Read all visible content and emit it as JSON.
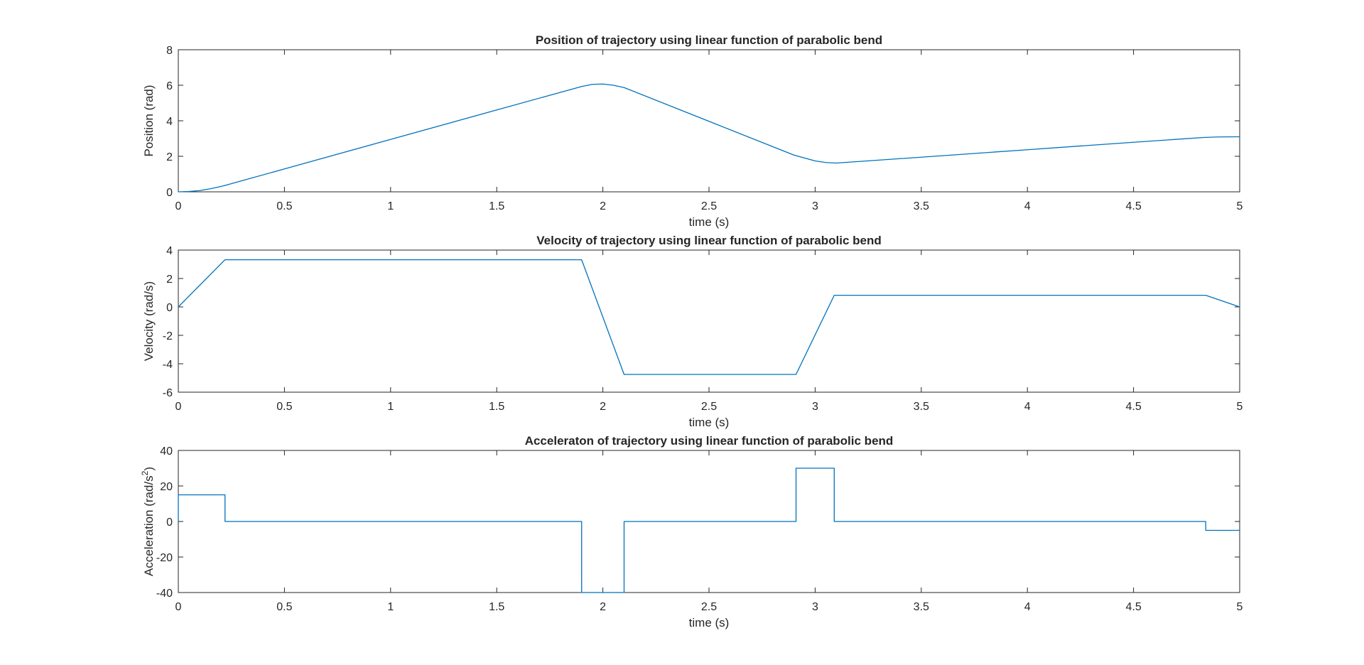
{
  "chart_data": [
    {
      "type": "line",
      "title": "Position of trajectory using linear function of parabolic bend",
      "xlabel": "time (s)",
      "ylabel": "Position (rad)",
      "xlim": [
        0,
        5
      ],
      "ylim": [
        0,
        8
      ],
      "xticks": [
        "0",
        "0.5",
        "1",
        "1.5",
        "2",
        "2.5",
        "3",
        "3.5",
        "4",
        "4.5",
        "5"
      ],
      "yticks": [
        "0",
        "2",
        "4",
        "6",
        "8"
      ],
      "grid": false,
      "series": [
        {
          "x": [
            0,
            0.05,
            0.1,
            0.15,
            0.2,
            0.22,
            0.5,
            1.0,
            1.5,
            1.8,
            1.9,
            1.95,
            2.0,
            2.05,
            2.1,
            2.5,
            2.9,
            3.0,
            3.05,
            3.1,
            3.5,
            4.0,
            4.5,
            4.83,
            4.9,
            5.0
          ],
          "y": [
            0,
            0.02,
            0.07,
            0.17,
            0.3,
            0.36,
            1.29,
            2.95,
            4.61,
            5.6,
            5.93,
            6.05,
            6.07,
            6.0,
            5.87,
            3.97,
            2.07,
            1.74,
            1.65,
            1.62,
            1.95,
            2.37,
            2.79,
            3.06,
            3.09,
            3.1
          ]
        }
      ]
    },
    {
      "type": "line",
      "title": "Velocity of trajectory using linear function of parabolic bend",
      "xlabel": "time (s)",
      "ylabel": "Velocity (rad/s)",
      "xlim": [
        0,
        5
      ],
      "ylim": [
        -6,
        4
      ],
      "xticks": [
        "0",
        "0.5",
        "1",
        "1.5",
        "2",
        "2.5",
        "3",
        "3.5",
        "4",
        "4.5",
        "5"
      ],
      "yticks": [
        "-6",
        "-4",
        "-2",
        "0",
        "2",
        "4"
      ],
      "grid": false,
      "series": [
        {
          "x": [
            0,
            0.22,
            1.9,
            2.1,
            2.91,
            3.09,
            4.84,
            5.0
          ],
          "y": [
            0,
            3.32,
            3.32,
            -4.75,
            -4.75,
            0.82,
            0.82,
            0
          ]
        }
      ]
    },
    {
      "type": "line",
      "title": "Acceleraton of trajectory using linear function of parabolic bend",
      "xlabel": "time (s)",
      "ylabel": "Acceleration (rad/s",
      "ylabel_sup": "2",
      "ylabel_close": ")",
      "xlim": [
        0,
        5
      ],
      "ylim": [
        -40,
        40
      ],
      "xticks": [
        "0",
        "0.5",
        "1",
        "1.5",
        "2",
        "2.5",
        "3",
        "3.5",
        "4",
        "4.5",
        "5"
      ],
      "yticks": [
        "-40",
        "-20",
        "0",
        "20",
        "40"
      ],
      "grid": false,
      "series": [
        {
          "x": [
            0,
            0,
            0.22,
            0.22,
            1.9,
            1.9,
            2.1,
            2.1,
            2.91,
            2.91,
            3.09,
            3.09,
            4.84,
            4.84,
            5.0
          ],
          "y": [
            0,
            15,
            15,
            0,
            0,
            -40,
            -40,
            0,
            0,
            30,
            30,
            0,
            0,
            -5,
            -5
          ]
        }
      ]
    }
  ],
  "style": {
    "line_color": "#0072bd",
    "axis_color": "#262626"
  }
}
